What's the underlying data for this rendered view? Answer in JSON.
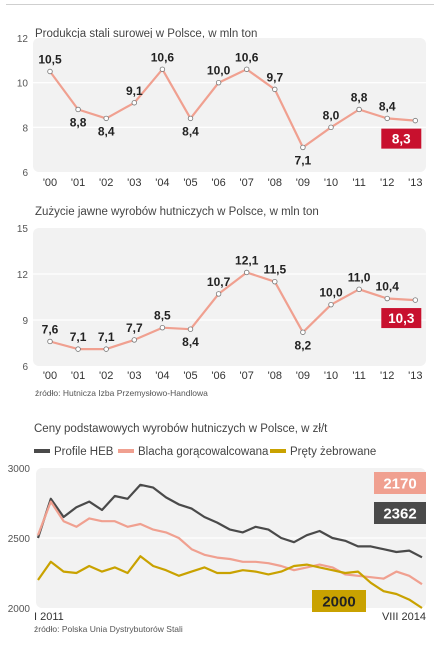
{
  "chart_data": [
    {
      "type": "line",
      "title": "Produkcja stali surowej w Polsce, w mln ton",
      "categories": [
        "'00",
        "'01",
        "'02",
        "'03",
        "'04",
        "'05",
        "'06",
        "'07",
        "'08",
        "'09",
        "'10",
        "'11",
        "'12",
        "'13"
      ],
      "series": [
        {
          "values": [
            10.5,
            8.8,
            8.4,
            9.1,
            10.6,
            8.4,
            10.0,
            10.6,
            9.7,
            7.1,
            8.0,
            8.8,
            8.4,
            8.3
          ]
        }
      ],
      "data_labels": [
        "10,5",
        "8,8",
        "8,4",
        "9,1",
        "10,6",
        "8,4",
        "10,0",
        "10,6",
        "9,7",
        "7,1",
        "8,0",
        "8,8",
        "8,4",
        "8,3"
      ],
      "ylim": [
        6,
        12
      ],
      "yticks": [
        6,
        8,
        10,
        12
      ],
      "ytick_labels": [
        "6",
        "8",
        "10",
        "12"
      ],
      "line_color": "#f0a090",
      "highlight_color": "#c8102e"
    },
    {
      "type": "line",
      "title": "Zużycie jawne wyrobów hutniczych w Polsce, w mln ton",
      "categories": [
        "'00",
        "'01",
        "'02",
        "'03",
        "'04",
        "'05",
        "'06",
        "'07",
        "'08",
        "'09",
        "'10",
        "'11",
        "'12",
        "'13"
      ],
      "series": [
        {
          "values": [
            7.6,
            7.1,
            7.1,
            7.7,
            8.5,
            8.4,
            10.7,
            12.1,
            11.5,
            8.2,
            10.0,
            11.0,
            10.4,
            10.3
          ]
        }
      ],
      "data_labels": [
        "7,6",
        "7,1",
        "7,1",
        "7,7",
        "8,5",
        "8,4",
        "10,7",
        "12,1",
        "11,5",
        "8,2",
        "10,0",
        "11,0",
        "10,4",
        "10,3"
      ],
      "ylim": [
        6,
        15
      ],
      "yticks": [
        6,
        9,
        12,
        15
      ],
      "ytick_labels": [
        "6",
        "9",
        "12",
        "15"
      ],
      "source": "źródło: Hutnicza Izba Przemysłowo-Handlowa",
      "line_color": "#f0a090",
      "highlight_color": "#c8102e"
    },
    {
      "type": "line",
      "title": "Ceny podstawowych wyrobów hutniczych w Polsce, w zł/t",
      "x_start_label": "I 2011",
      "x_end_label": "VIII 2014",
      "ylim": [
        2000,
        3000
      ],
      "yticks": [
        2000,
        2500,
        3000
      ],
      "ytick_labels": [
        "2000",
        "2500",
        "3000"
      ],
      "series": [
        {
          "name": "Profile HEB",
          "color": "#4a4a4a",
          "end_label": "2362",
          "values": [
            2500,
            2780,
            2650,
            2720,
            2760,
            2700,
            2800,
            2780,
            2880,
            2860,
            2790,
            2740,
            2710,
            2650,
            2610,
            2560,
            2540,
            2580,
            2560,
            2500,
            2470,
            2520,
            2550,
            2500,
            2480,
            2440,
            2440,
            2420,
            2400,
            2410,
            2362
          ]
        },
        {
          "name": "Blacha gorącowalcowana",
          "color": "#f0a090",
          "end_label": "2170",
          "values": [
            2520,
            2760,
            2620,
            2580,
            2640,
            2620,
            2620,
            2580,
            2600,
            2560,
            2540,
            2500,
            2420,
            2380,
            2360,
            2350,
            2330,
            2330,
            2320,
            2300,
            2270,
            2290,
            2310,
            2290,
            2240,
            2230,
            2220,
            2210,
            2260,
            2230,
            2170
          ]
        },
        {
          "name": "Pręty żebrowane",
          "color": "#c9a200",
          "end_label": "2000",
          "values": [
            2200,
            2330,
            2260,
            2250,
            2300,
            2260,
            2290,
            2250,
            2370,
            2300,
            2270,
            2230,
            2260,
            2290,
            2250,
            2250,
            2270,
            2260,
            2240,
            2260,
            2300,
            2310,
            2290,
            2270,
            2250,
            2260,
            2180,
            2120,
            2100,
            2060,
            2000
          ]
        }
      ],
      "legend": "top",
      "source": "źródło: Polska Unia Dystrybutorów Stali"
    }
  ]
}
